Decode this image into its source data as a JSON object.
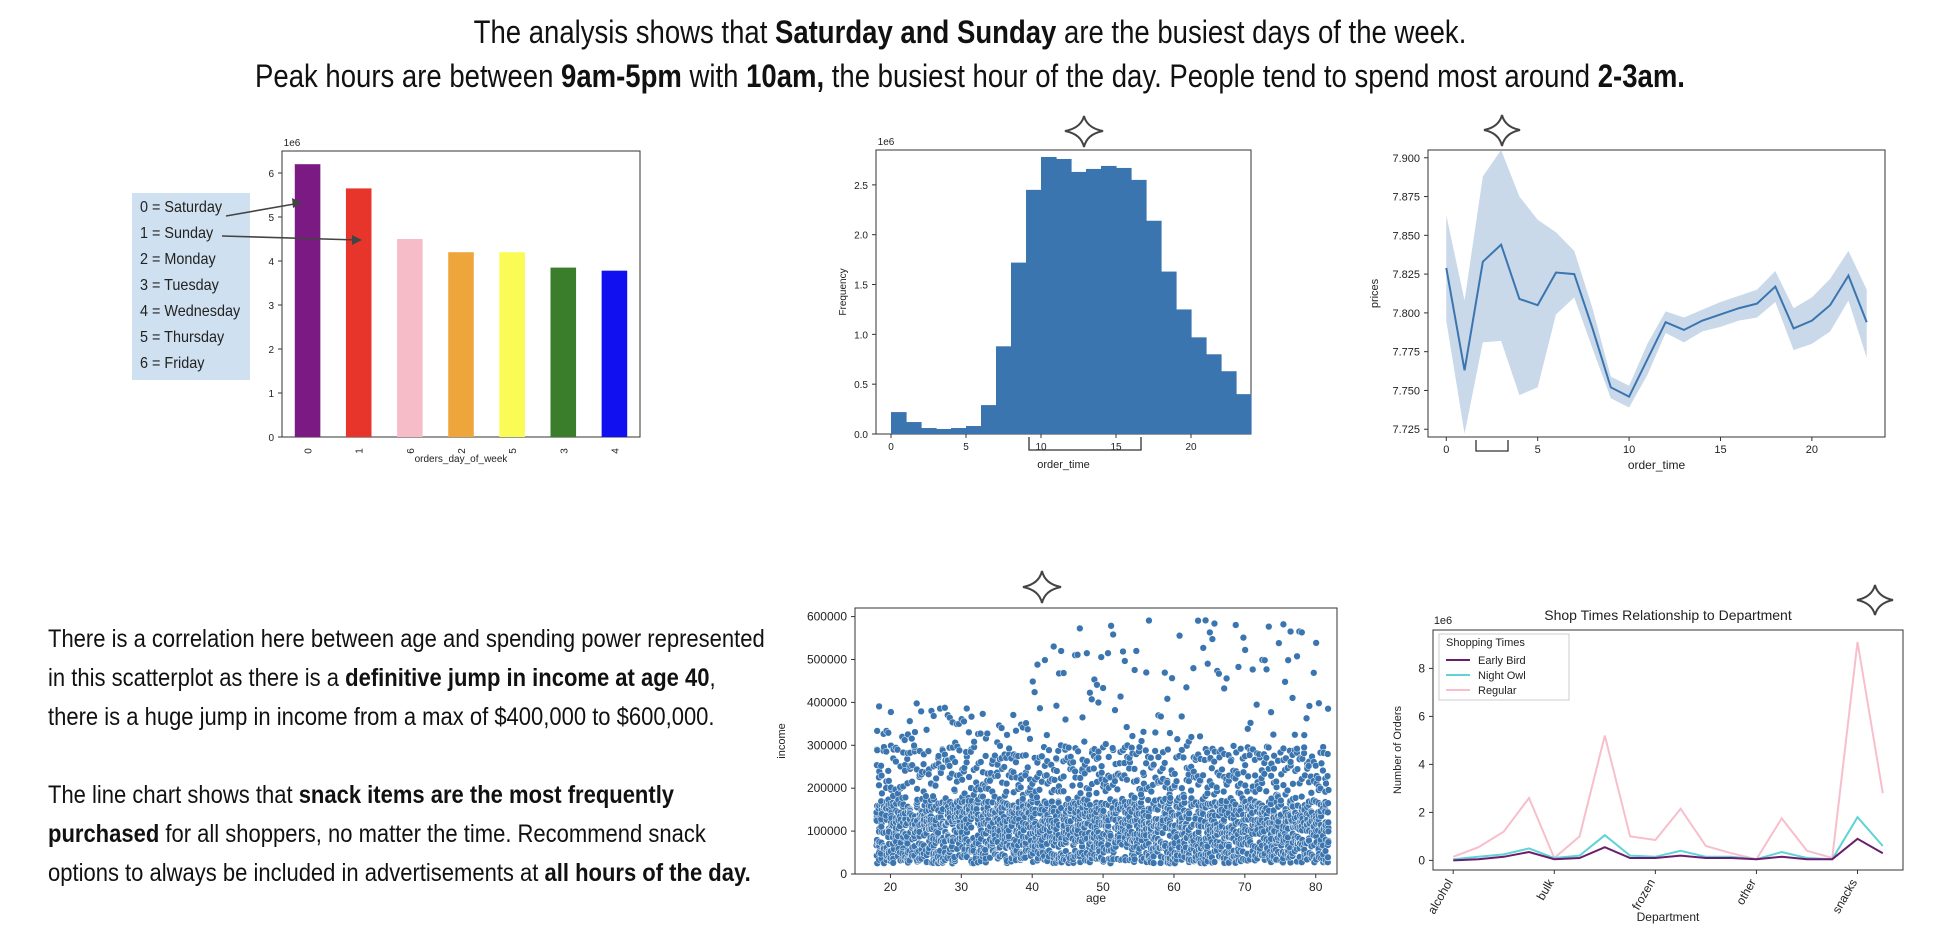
{
  "headline": {
    "l1_a": "The analysis shows that ",
    "l1_b": "Saturday and Sunday",
    "l1_c": " are the busiest days of the week.",
    "l2_a": "Peak hours are between ",
    "l2_b": "9am-5pm",
    "l2_c": " with ",
    "l2_d": "10am,",
    "l2_e": " the busiest hour of the day.  People tend to spend most around ",
    "l2_f": "2-3am."
  },
  "paragraph1": {
    "a": "There is a correlation here between age and spending power represented",
    "b": "in this scatterplot as there is a ",
    "c": "definitive jump in income at age 40",
    "d": ",",
    "e": "there is a huge jump in income from a max of $400,000 to $600,000."
  },
  "paragraph2": {
    "a": "The line chart shows that ",
    "b": "snack items are the most frequently",
    "c": "purchased",
    "d": " for all shoppers, no matter the time.  Recommend snack",
    "e": "options to always be included in advertisements at ",
    "f": "all hours of the day."
  },
  "day_legend": [
    "0 = Saturday",
    "1 = Sunday",
    "2 = Monday",
    "3 = Tuesday",
    "4 = Wednesday",
    "5 = Thursday",
    "6 = Friday"
  ],
  "chart_data": [
    {
      "type": "bar",
      "xlabel": "orders_day_of_week",
      "ylabel": "",
      "scale_label": "1e6",
      "categories": [
        "0",
        "1",
        "6",
        "2",
        "5",
        "3",
        "4"
      ],
      "values": [
        6.2,
        5.65,
        4.5,
        4.2,
        4.2,
        3.85,
        3.78
      ],
      "colors": [
        "#7a1a82",
        "#e8352b",
        "#f6bcc8",
        "#eda53c",
        "#fbfb55",
        "#3a7d2a",
        "#1010f0"
      ],
      "ylim": [
        0,
        6.5
      ],
      "yticks": [
        0,
        1,
        2,
        3,
        4,
        5,
        6
      ]
    },
    {
      "type": "bar",
      "subtype": "histogram",
      "xlabel": "order_time",
      "ylabel": "Frequency",
      "scale_label": "1e6",
      "bin_start": 0,
      "bin_width": 1,
      "values": [
        0.22,
        0.12,
        0.06,
        0.05,
        0.06,
        0.08,
        0.29,
        0.88,
        1.72,
        2.45,
        2.78,
        2.76,
        2.63,
        2.66,
        2.69,
        2.67,
        2.55,
        2.14,
        1.63,
        1.25,
        0.97,
        0.8,
        0.63,
        0.4
      ],
      "xlim": [
        -1,
        24
      ],
      "ylim": [
        0,
        2.85
      ],
      "xticks": [
        0,
        5,
        10,
        15,
        20
      ],
      "yticks": [
        0.0,
        0.5,
        1.0,
        1.5,
        2.0,
        2.5
      ],
      "color": "#3b75af"
    },
    {
      "type": "line",
      "xlabel": "order_time",
      "ylabel": "prices",
      "x": [
        0,
        1,
        2,
        3,
        4,
        5,
        6,
        7,
        8,
        9,
        10,
        11,
        12,
        13,
        14,
        15,
        16,
        17,
        18,
        19,
        20,
        21,
        22,
        23
      ],
      "y": [
        7.829,
        7.763,
        7.833,
        7.844,
        7.809,
        7.805,
        7.826,
        7.825,
        7.79,
        7.752,
        7.746,
        7.77,
        7.794,
        7.789,
        7.795,
        7.799,
        7.803,
        7.806,
        7.817,
        7.79,
        7.795,
        7.805,
        7.824,
        7.794
      ],
      "upper": [
        7.863,
        7.808,
        7.888,
        7.905,
        7.875,
        7.86,
        7.852,
        7.84,
        7.803,
        7.759,
        7.753,
        7.78,
        7.801,
        7.797,
        7.802,
        7.807,
        7.811,
        7.815,
        7.827,
        7.803,
        7.81,
        7.822,
        7.84,
        7.815
      ],
      "lower": [
        7.795,
        7.722,
        7.781,
        7.782,
        7.747,
        7.752,
        7.799,
        7.81,
        7.777,
        7.745,
        7.739,
        7.76,
        7.787,
        7.781,
        7.788,
        7.791,
        7.795,
        7.797,
        7.807,
        7.776,
        7.78,
        7.788,
        7.808,
        7.771
      ],
      "xlim": [
        -1,
        24
      ],
      "ylim": [
        7.72,
        7.905
      ],
      "xticks": [
        0,
        5,
        10,
        15,
        20
      ],
      "yticks": [
        7.725,
        7.75,
        7.775,
        7.8,
        7.825,
        7.85,
        7.875,
        7.9
      ],
      "color": "#3b75af",
      "band_color": "#c9d9ea"
    },
    {
      "type": "scatter",
      "xlabel": "age",
      "ylabel": "income",
      "xlim": [
        15,
        83
      ],
      "ylim": [
        0,
        620000
      ],
      "xticks": [
        20,
        30,
        40,
        50,
        60,
        70,
        80
      ],
      "yticks": [
        0,
        100000,
        200000,
        300000,
        400000,
        500000,
        600000
      ],
      "color": "#3b75af",
      "x_range": [
        18,
        81
      ],
      "income_floor": 25000,
      "dense_max": 170000,
      "mid_max_under_40": 300000,
      "max_under_40": 400000,
      "mid_max_40_plus": 300000,
      "max_40_plus": 595000,
      "jump_age": 40
    },
    {
      "type": "line",
      "title": "Shop Times Relationship to Department",
      "xlabel": "Department",
      "ylabel": "Number of Orders",
      "scale_label": "1e6",
      "legend_title": "Shopping Times",
      "legend_position": "top-left",
      "xticklabels": [
        "alcohol",
        "bulk",
        "frozen",
        "other",
        "snacks"
      ],
      "xtick_positions": [
        0,
        4,
        8,
        12,
        16
      ],
      "x": [
        0,
        1,
        2,
        3,
        4,
        5,
        6,
        7,
        8,
        9,
        10,
        11,
        12,
        13,
        14,
        15,
        16,
        17
      ],
      "ylim": [
        -0.4,
        9.6
      ],
      "yticks": [
        0,
        2,
        4,
        6,
        8
      ],
      "series": [
        {
          "name": "Early Bird",
          "color": "#6a1d6e",
          "values": [
            0.0,
            0.05,
            0.15,
            0.35,
            0.05,
            0.1,
            0.55,
            0.1,
            0.1,
            0.2,
            0.1,
            0.1,
            0.05,
            0.15,
            0.05,
            0.05,
            0.9,
            0.3
          ]
        },
        {
          "name": "Night Owl",
          "color": "#5fd3d6",
          "values": [
            0.05,
            0.15,
            0.25,
            0.5,
            0.1,
            0.2,
            1.05,
            0.2,
            0.15,
            0.4,
            0.15,
            0.15,
            0.05,
            0.35,
            0.1,
            0.05,
            1.8,
            0.6
          ]
        },
        {
          "name": "Regular",
          "color": "#f7bfcc",
          "values": [
            0.15,
            0.55,
            1.2,
            2.6,
            0.1,
            1.0,
            5.2,
            1.0,
            0.85,
            2.15,
            0.6,
            0.3,
            0.05,
            1.75,
            0.4,
            0.1,
            9.1,
            2.8
          ]
        }
      ]
    }
  ]
}
